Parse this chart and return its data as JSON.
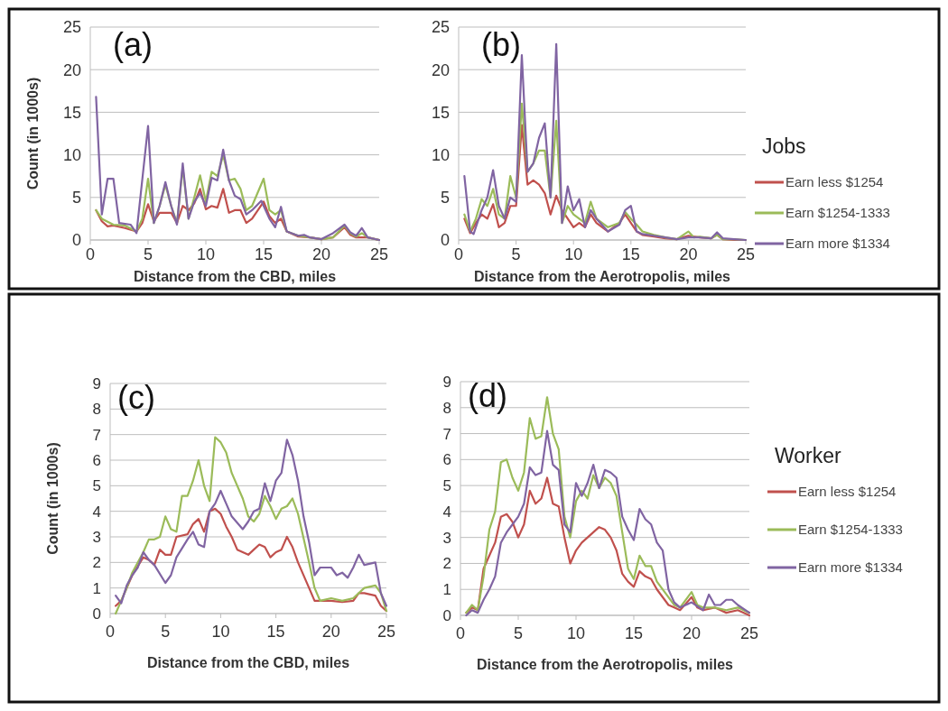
{
  "chart_data": [
    {
      "type": "line",
      "title": "(a)",
      "xlabel": "Distance from the CBD, miles",
      "ylabel": "Count (in 1000s)",
      "xlim": [
        0,
        25
      ],
      "xticks": [
        0,
        5,
        10,
        15,
        20,
        25
      ],
      "ylim": [
        0,
        25
      ],
      "yticks": [
        0,
        5,
        10,
        15,
        20,
        25
      ],
      "grid": "y",
      "series": [
        {
          "color": "#c0504d",
          "x": [
            0.5,
            1,
            1.5,
            2,
            3,
            4,
            4.5,
            5,
            5.5,
            6,
            7,
            7.5,
            8,
            8.5,
            9,
            9.5,
            10,
            10.5,
            11,
            11.5,
            12,
            12.5,
            13,
            13.5,
            14,
            15,
            15.5,
            16,
            16.5,
            17,
            18,
            19,
            20,
            21,
            22,
            22.5,
            23,
            24,
            25
          ],
          "values": [
            3.5,
            2.2,
            1.6,
            1.7,
            1.4,
            1,
            2,
            4.2,
            2.2,
            3.2,
            3.2,
            2,
            4,
            3.5,
            4.3,
            6,
            3.6,
            4,
            3.8,
            6,
            3.2,
            3.5,
            3.5,
            2,
            2.5,
            4.5,
            2.8,
            2,
            2.5,
            1,
            0.4,
            0.3,
            0.1,
            0.3,
            1.5,
            0.6,
            0.3,
            0.3,
            0
          ]
        },
        {
          "color": "#9bbb59",
          "x": [
            0.5,
            1,
            2,
            3,
            4,
            4.5,
            5,
            5.5,
            6,
            6.5,
            7,
            7.5,
            8,
            8.5,
            9,
            9.5,
            10,
            10.5,
            11,
            11.5,
            12,
            12.5,
            13,
            13.5,
            14,
            15,
            15.5,
            16,
            16.5,
            17,
            18,
            19,
            20,
            21,
            22,
            22.5,
            23,
            23.5,
            24,
            25
          ],
          "values": [
            3.5,
            2.5,
            1.8,
            1.7,
            1,
            2.5,
            7.2,
            2,
            4,
            6.5,
            4,
            2,
            8.5,
            2.5,
            5,
            7.6,
            4.5,
            8,
            7.5,
            10,
            7,
            7.2,
            6,
            3.5,
            4,
            7.2,
            3.5,
            3,
            3.5,
            1,
            0.5,
            0.3,
            0.1,
            0.3,
            1.7,
            0.8,
            0.4,
            0.8,
            0.3,
            0
          ]
        },
        {
          "color": "#8064a2",
          "x": [
            0.5,
            1,
            1.5,
            2,
            2.5,
            3.5,
            4,
            5,
            5.5,
            6,
            6.5,
            7,
            7.5,
            8,
            8.5,
            9,
            9.5,
            10,
            10.5,
            11,
            11.5,
            12,
            12.5,
            13,
            13.5,
            14,
            14.8,
            15.5,
            16,
            16.5,
            17,
            18,
            18.5,
            19,
            20,
            21,
            22,
            22.5,
            23,
            23.5,
            24,
            25
          ],
          "values": [
            16.8,
            3,
            7.2,
            7.2,
            2,
            1.8,
            0.8,
            13.4,
            2,
            4,
            6.8,
            4,
            1.8,
            9,
            2.5,
            4.5,
            5.5,
            4,
            7.3,
            7,
            10.6,
            7,
            5.2,
            4.8,
            3,
            3.5,
            4.6,
            2.5,
            1.5,
            3.9,
            1,
            0.5,
            0.6,
            0.3,
            0.1,
            0.8,
            1.8,
            0.9,
            0.5,
            1.4,
            0.3,
            0
          ]
        }
      ]
    },
    {
      "type": "line",
      "title": "(b)",
      "xlabel": "Distance from the Aerotropolis, miles",
      "xlim": [
        0,
        25
      ],
      "xticks": [
        0,
        5,
        10,
        15,
        20,
        25
      ],
      "ylim": [
        0,
        25
      ],
      "yticks": [
        0,
        5,
        10,
        15,
        20,
        25
      ],
      "grid": "y",
      "legend": "right",
      "legend_title": "Jobs",
      "series": [
        {
          "name": "Earn less $1254",
          "color": "#c0504d",
          "x": [
            0.5,
            1,
            1.5,
            2,
            2.5,
            3,
            3.5,
            4,
            4.5,
            5,
            5.5,
            6,
            6.5,
            7,
            7.5,
            8,
            8.5,
            9,
            9.5,
            10,
            10.5,
            11,
            11.5,
            12,
            13,
            14,
            14.5,
            15,
            15.5,
            16,
            17,
            18,
            19,
            20,
            21,
            22,
            22.5,
            23,
            24,
            25
          ],
          "values": [
            2.5,
            0.8,
            2,
            3,
            2.5,
            4.2,
            1.5,
            2,
            4,
            4,
            13.5,
            6.5,
            7,
            6.5,
            5.5,
            3,
            5.2,
            3.5,
            2.5,
            1.5,
            2,
            1.5,
            3,
            2,
            1,
            2,
            3,
            2,
            1,
            0.6,
            0.4,
            0.2,
            0.1,
            0.5,
            0.3,
            0.2,
            0.6,
            0.1,
            0,
            0
          ]
        },
        {
          "name": "Earn $1254-1333",
          "color": "#9bbb59",
          "x": [
            0.5,
            1,
            1.5,
            2,
            2.5,
            3,
            3.5,
            4,
            4.5,
            5,
            5.5,
            6,
            6.5,
            7,
            7.5,
            8,
            8.5,
            9,
            9.5,
            10,
            11,
            11.5,
            12,
            13,
            14,
            14.5,
            15,
            15.5,
            16,
            17,
            18,
            19,
            20,
            20.5,
            21,
            22,
            22.5,
            23,
            24,
            25
          ],
          "values": [
            3,
            1,
            2.5,
            4.8,
            4,
            6,
            3,
            2.5,
            7.5,
            5,
            16,
            8,
            9,
            10.5,
            10.5,
            5,
            14,
            2,
            4,
            3,
            2,
            4.5,
            2.5,
            1.5,
            2,
            3.3,
            2.5,
            1.8,
            1,
            0.6,
            0.3,
            0.1,
            1,
            0.3,
            0.4,
            0.2,
            0.6,
            0.1,
            0.1,
            0
          ]
        },
        {
          "name": "Earn more $1334",
          "color": "#8064a2",
          "x": [
            0.5,
            1,
            1.3,
            2,
            2.5,
            3,
            3.5,
            4,
            4.5,
            5,
            5.5,
            6,
            6.5,
            7,
            7.5,
            8,
            8.5,
            9,
            9.5,
            10,
            10.5,
            11,
            11.5,
            12,
            13,
            14,
            14.5,
            15,
            15.5,
            16,
            17,
            18,
            19,
            20,
            21,
            22,
            22.5,
            23,
            24,
            25
          ],
          "values": [
            7.5,
            1,
            0.7,
            3.5,
            5,
            8.2,
            4,
            2.5,
            5,
            4.5,
            21.7,
            8,
            9,
            12,
            13.7,
            5,
            23,
            2,
            6.3,
            3.5,
            4.8,
            1.5,
            3.5,
            2.5,
            1,
            1.8,
            3.5,
            4,
            1,
            0.7,
            0.5,
            0.3,
            0.1,
            0.3,
            0.3,
            0.2,
            0.9,
            0.2,
            0.1,
            0
          ]
        }
      ]
    },
    {
      "type": "line",
      "title": "(c)",
      "xlabel": "Distance from the CBD, miles",
      "ylabel": "Count (in 1000s)",
      "xlim": [
        0,
        25
      ],
      "xticks": [
        0,
        5,
        10,
        15,
        20,
        25
      ],
      "ylim": [
        0,
        9
      ],
      "yticks": [
        0,
        1,
        2,
        3,
        4,
        5,
        6,
        7,
        8,
        9
      ],
      "grid": "y",
      "series": [
        {
          "color": "#c0504d",
          "x": [
            0.5,
            1,
            1.5,
            2,
            3,
            3.5,
            4,
            4.5,
            5,
            5.5,
            6,
            7,
            7.5,
            8,
            8.5,
            9,
            9.5,
            10,
            10.5,
            11,
            11.5,
            12,
            12.5,
            13,
            13.5,
            14,
            14.5,
            15,
            15.5,
            16,
            16.5,
            17,
            18,
            18.5,
            19,
            20,
            21,
            22,
            22.5,
            23,
            24,
            24.5,
            25
          ],
          "values": [
            0.3,
            0.5,
            1,
            1.5,
            2.2,
            2.1,
            1.9,
            2.5,
            2.3,
            2.3,
            3,
            3.1,
            3.5,
            3.7,
            3.2,
            4,
            4.1,
            3.9,
            3.4,
            3,
            2.5,
            2.4,
            2.3,
            2.5,
            2.7,
            2.6,
            2.2,
            2.4,
            2.5,
            3,
            2.6,
            2,
            1,
            0.5,
            0.5,
            0.5,
            0.45,
            0.5,
            0.8,
            0.8,
            0.7,
            0.3,
            0.1
          ]
        },
        {
          "color": "#9bbb59",
          "x": [
            0.5,
            1,
            1.5,
            2,
            3,
            3.5,
            4,
            4.5,
            5,
            5.5,
            6,
            6.5,
            7,
            7.5,
            8,
            8.5,
            9,
            9.5,
            10,
            10.5,
            11,
            12,
            12.5,
            13,
            13.5,
            14,
            14.5,
            15,
            15.5,
            16,
            16.5,
            17,
            18,
            18.5,
            19,
            20,
            21,
            22,
            23,
            24,
            24.5,
            25
          ],
          "values": [
            0,
            0.5,
            1,
            1.6,
            2.4,
            2.9,
            2.9,
            3,
            3.8,
            3.3,
            3.2,
            4.6,
            4.6,
            5.2,
            6,
            5,
            4.4,
            6.9,
            6.7,
            6.3,
            5.5,
            4.5,
            3.8,
            3.6,
            3.9,
            4.6,
            4.2,
            3.7,
            4.1,
            4.2,
            4.5,
            3.9,
            2,
            1,
            0.5,
            0.6,
            0.5,
            0.6,
            1,
            1.1,
            0.8,
            0.1
          ]
        },
        {
          "color": "#8064a2",
          "x": [
            0.5,
            1,
            1.5,
            2,
            2.5,
            3,
            3.5,
            4,
            5,
            5.5,
            6,
            7,
            7.5,
            8,
            8.5,
            9,
            9.5,
            10,
            10.5,
            11,
            12,
            12.5,
            13,
            13.5,
            14,
            14.5,
            15,
            15.5,
            16,
            16.5,
            17,
            17.5,
            18,
            18.5,
            19,
            20,
            20.5,
            21,
            21.5,
            22,
            22.5,
            23,
            24,
            24.5,
            25
          ],
          "values": [
            0.7,
            0.4,
            1.1,
            1.5,
            1.8,
            2.4,
            2.1,
            1.9,
            1.2,
            1.5,
            2.2,
            2.9,
            3.2,
            2.7,
            2.6,
            4,
            4.3,
            4.8,
            4.3,
            3.8,
            3.3,
            3.6,
            4,
            4.1,
            5.1,
            4.4,
            5.2,
            5.5,
            6.8,
            6.2,
            5.2,
            3.8,
            2.8,
            1.5,
            1.8,
            1.8,
            1.5,
            1.6,
            1.4,
            1.8,
            2.3,
            1.9,
            2,
            0.8,
            0.3
          ]
        }
      ]
    },
    {
      "type": "line",
      "title": "(d)",
      "xlabel": "Distance from the Aerotropolis, miles",
      "xlim": [
        0,
        25
      ],
      "xticks": [
        0,
        5,
        10,
        15,
        20,
        25
      ],
      "ylim": [
        0,
        9
      ],
      "yticks": [
        0,
        1,
        2,
        3,
        4,
        5,
        6,
        7,
        8,
        9
      ],
      "grid": "y",
      "legend": "right",
      "legend_title": "Worker",
      "series": [
        {
          "name": "Earn less $1254",
          "color": "#c0504d",
          "x": [
            0.5,
            1,
            1.5,
            2,
            2.5,
            3,
            3.5,
            4,
            4.5,
            5,
            5.5,
            6,
            6.5,
            7,
            7.5,
            8,
            8.5,
            9,
            9.5,
            10,
            10.5,
            11,
            11.5,
            12,
            12.5,
            13,
            13.5,
            14,
            14.5,
            15,
            15.5,
            16,
            16.5,
            17,
            18,
            18.5,
            19,
            20,
            20.5,
            21,
            22,
            23,
            24,
            25
          ],
          "values": [
            0.1,
            0.3,
            0.2,
            1.8,
            2.3,
            2.8,
            3.8,
            3.9,
            3.6,
            3,
            3.5,
            4.8,
            4.3,
            4.5,
            5.3,
            4.3,
            4.2,
            3,
            2,
            2.5,
            2.8,
            3,
            3.2,
            3.4,
            3.3,
            3,
            2.5,
            1.6,
            1.3,
            1.1,
            1.7,
            1.5,
            1.4,
            1,
            0.4,
            0.3,
            0.2,
            0.7,
            0.3,
            0.2,
            0.3,
            0.1,
            0.2,
            0
          ]
        },
        {
          "name": "Earn $1254-1333",
          "color": "#9bbb59",
          "x": [
            0.5,
            1,
            1.5,
            2,
            2.5,
            3,
            3.5,
            4,
            4.5,
            5,
            5.5,
            6,
            6.5,
            7,
            7.5,
            8,
            8.5,
            9,
            9.5,
            10,
            10.5,
            11,
            11.5,
            12,
            12.5,
            13,
            13.5,
            14,
            14.5,
            15,
            15.5,
            16,
            16.5,
            17,
            18,
            18.5,
            19,
            20,
            20.5,
            21,
            22,
            23,
            24,
            25
          ],
          "values": [
            0.1,
            0.4,
            0.2,
            1.5,
            3.3,
            4,
            5.9,
            6,
            5.3,
            4.8,
            5.5,
            7.6,
            6.8,
            6.9,
            8.4,
            7,
            6.4,
            3.8,
            3,
            4.4,
            4.8,
            4.5,
            5.4,
            4.9,
            5.3,
            5.1,
            4.6,
            3.2,
            1.8,
            1.4,
            2.3,
            1.9,
            1.9,
            1.3,
            0.7,
            0.4,
            0.3,
            0.9,
            0.4,
            0.3,
            0.3,
            0.2,
            0.3,
            0.1
          ]
        },
        {
          "name": "Earn more $1334",
          "color": "#8064a2",
          "x": [
            0.5,
            1,
            1.5,
            2,
            2.5,
            3,
            3.5,
            4,
            4.5,
            5,
            5.5,
            6,
            6.5,
            7,
            7.5,
            8,
            8.5,
            9,
            9.5,
            10,
            10.5,
            11,
            11.5,
            12,
            12.5,
            13,
            13.5,
            14,
            14.5,
            15,
            15.5,
            16,
            16.5,
            17,
            17.5,
            18,
            18.5,
            19,
            20,
            21,
            21.5,
            22,
            22.5,
            23,
            23.5,
            24,
            25
          ],
          "values": [
            0,
            0.2,
            0.1,
            0.6,
            1,
            1.5,
            2.8,
            3.2,
            3.5,
            3.8,
            4.3,
            5.7,
            5.4,
            5.5,
            7.1,
            5.8,
            5.6,
            3.5,
            3.2,
            5.1,
            4.6,
            5.1,
            5.8,
            4.9,
            5.6,
            5.5,
            5.3,
            3.8,
            3.3,
            2.9,
            4.1,
            3.7,
            3.5,
            2.8,
            2.5,
            1,
            0.5,
            0.3,
            0.5,
            0.2,
            0.8,
            0.4,
            0.4,
            0.6,
            0.6,
            0.4,
            0.1
          ]
        }
      ]
    }
  ]
}
